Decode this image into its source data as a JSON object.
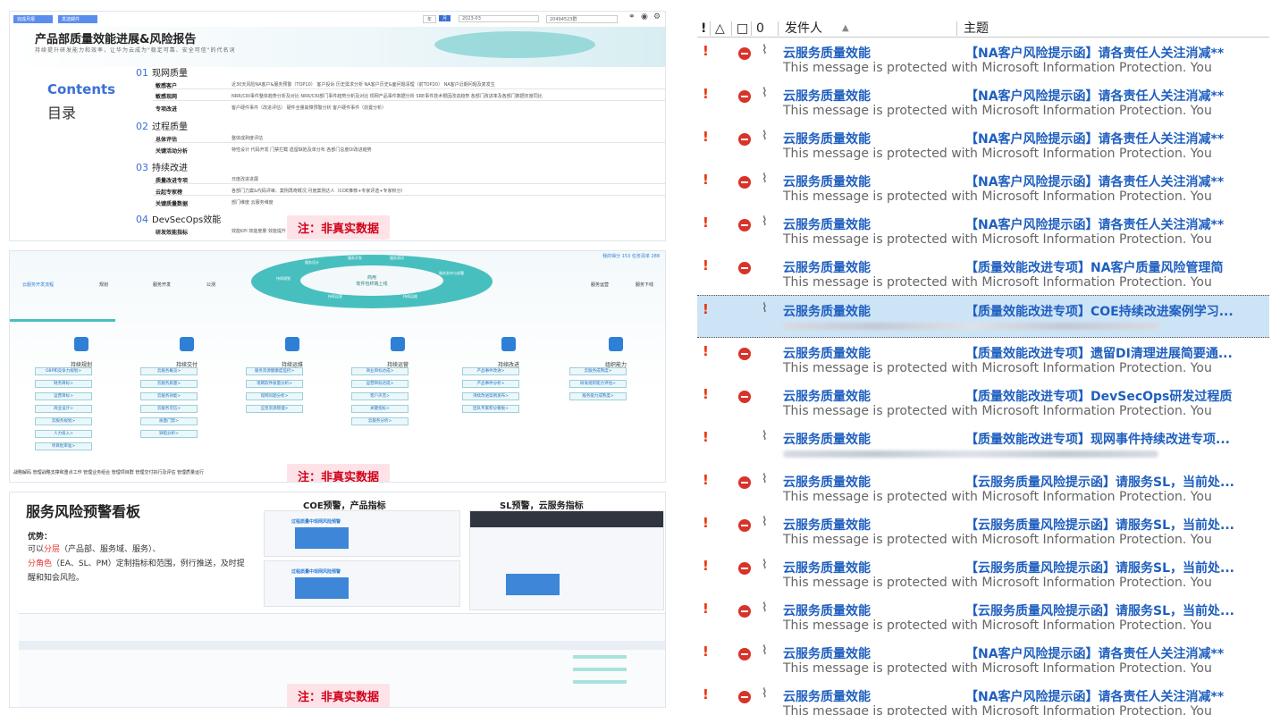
{
  "panel1": {
    "buttons": [
      "完成月报",
      "发送邮件"
    ],
    "top_toggle": [
      "年",
      "月"
    ],
    "date": "2023-03",
    "dept": "20494523群",
    "title": "产品部质量效能进展&风险报告",
    "subtitle": "持续提升研发能力和效率，让华为云成为\"稳定可靠、安全可信\"的代名词",
    "contents_label": "Contents",
    "mulu_label": "目录",
    "sections": [
      {
        "num": "01",
        "name": "现网质量"
      },
      {
        "num": "02",
        "name": "过程质量"
      },
      {
        "num": "03",
        "name": "持续改进"
      },
      {
        "num": "04",
        "name": "DevSecOps效能"
      }
    ],
    "rows": [
      {
        "label": "敏感客户",
        "items": "近30天风险NA客户&服务预警（TOP10）    客户投诉    历史需求分析    NA客户历史&面问题清理（前TOP20）    NA客户近期问题及复发生"
      },
      {
        "label": "敏感现网",
        "items": "NRR/CRI事件整体趋势分析及对比    NRR/CRI部门事件趋势分析及对比    现网产品事件数据分析    SRE事件技术根因改进趋势    各部门改进率及各部门数据年度同比"
      },
      {
        "label": "专项改进",
        "items": "客户硬件事件（改进评估）    硬件全量故障预警分析    客户硬件事件（前置分析）"
      },
      {
        "label": "总体评估",
        "items": "整体成熟度评估"
      },
      {
        "label": "关键活动分析",
        "items": "特性设计    代码开发    门禁拦截    遗留缺陷及单分布    各部门总度DI改进趋势"
      },
      {
        "label": "质量改进专项",
        "items": "日度改进进展"
      },
      {
        "label": "云起专家榜",
        "items": "各部门力案&代码评审、案例再奇概况    月度案例达人（COE推荐+专家评选+专家积分）"
      },
      {
        "label": "关键质量数据",
        "items": "部门维度    云服务维度"
      },
      {
        "label": "研发效能指标",
        "items": "效能KPI    效能度量    效能提升    效能评估    DevOps分析    研发组织能力评估"
      }
    ],
    "note": "注：非真实数据"
  },
  "panel2": {
    "score_text": "我的得分 153    任务清单 288",
    "ring_center": [
      "商用",
      "软件包终端上线"
    ],
    "ring_labels": [
      "服务设计",
      "服务开发",
      "服务测试",
      "服务发布与部署",
      "持续规划",
      "持续运维",
      "持续运营",
      "服务上线"
    ],
    "flow_left": [
      "云服务开发流程",
      "规划",
      "服务开发",
      "公测"
    ],
    "flow_right": [
      "服务运营",
      "服务下线"
    ],
    "columns": [
      {
        "title": "持续规划",
        "items": [
          "OBP和竞争力规划>",
          "财务目标>",
          "运营目标>",
          "商业设计>",
          "云服务规划>",
          "人力投入>",
          "项目批审准>"
        ]
      },
      {
        "title": "持续交付",
        "items": [
          "云服务概览>",
          "云服务质量>",
          "云服务效能>",
          "云服务可信>",
          "质量门禁>",
          "缺陷分析>"
        ]
      },
      {
        "title": "持续运维",
        "items": [
          "服务资源健康度监控>",
          "现网软件质量分析>",
          "现网问题分析>",
          "应急资源管理>"
        ]
      },
      {
        "title": "持续运营",
        "items": [
          "商业目标达成>",
          "运营目标达成>",
          "客户声音>",
          "关键指标>",
          "云服务分析>"
        ]
      },
      {
        "title": "持续改进",
        "items": [
          "产品事件改进>",
          "产品事件分析>",
          "持续改进案例发布>",
          "团队专家积分看板>"
        ]
      },
      {
        "title": "组织能力",
        "items": [
          "云服务成熟度>",
          "研发组织能力评估>",
          "服务能力成熟度>"
        ]
      }
    ],
    "bottom": "战略解码    管理战略支撑和重点工作    管理业务组合    管理项目群    管理交付执行及评估    管理质量运行",
    "note": "注：非真实数据"
  },
  "panel3": {
    "title": "服务风险预警看板",
    "head_coe": "COE预警，产品指标",
    "head_sl": "SL预警，云服务指标",
    "adv_label": "优势：",
    "body_parts": [
      "可以",
      "分层",
      "（产品部、服务域、服务）、",
      "分角色",
      "（EA、SL、PM）定制指标和范围，例行推送，及时提醒和知会风险。"
    ],
    "card_title": "过程质量中现网风险预警",
    "note": "注：非真实数据"
  },
  "mail": {
    "headers": {
      "importance": "!",
      "reminder": "△",
      "type": "□",
      "attach": "0",
      "sender": "发件人",
      "subject": "主题"
    },
    "rows": [
      {
        "sender": "云服务质量效能",
        "subject": "【NA客户风险提示函】请各责任人关注消减**",
        "preview": "This message is protected with Microsoft Information Protection. You",
        "imp": true,
        "stop": true,
        "clip": true,
        "sel": false,
        "blur": false
      },
      {
        "sender": "云服务质量效能",
        "subject": "【NA客户风险提示函】请各责任人关注消减**",
        "preview": "This message is protected with Microsoft Information Protection. You",
        "imp": true,
        "stop": true,
        "clip": true,
        "sel": false,
        "blur": false
      },
      {
        "sender": "云服务质量效能",
        "subject": "【NA客户风险提示函】请各责任人关注消减**",
        "preview": "This message is protected with Microsoft Information Protection. You",
        "imp": true,
        "stop": true,
        "clip": true,
        "sel": false,
        "blur": false
      },
      {
        "sender": "云服务质量效能",
        "subject": "【NA客户风险提示函】请各责任人关注消减**",
        "preview": "This message is protected with Microsoft Information Protection. You",
        "imp": true,
        "stop": true,
        "clip": true,
        "sel": false,
        "blur": false
      },
      {
        "sender": "云服务质量效能",
        "subject": "【NA客户风险提示函】请各责任人关注消减**",
        "preview": "This message is protected with Microsoft Information Protection. You",
        "imp": true,
        "stop": true,
        "clip": true,
        "sel": false,
        "blur": false
      },
      {
        "sender": "云服务质量效能",
        "subject": "【质量效能改进专项】NA客户质量风险管理简",
        "preview": "This message is protected with Microsoft Information Protection. You",
        "imp": true,
        "stop": true,
        "clip": false,
        "sel": false,
        "blur": false
      },
      {
        "sender": "云服务质量效能",
        "subject": "【质量效能改进专项】COE持续改进案例学习...",
        "preview": "",
        "imp": true,
        "stop": false,
        "clip": true,
        "sel": true,
        "blur": true
      },
      {
        "sender": "云服务质量效能",
        "subject": "【质量效能改进专项】遗留DI清理进展简要通...",
        "preview": "This message is protected with Microsoft Information Protection. You",
        "imp": true,
        "stop": true,
        "clip": false,
        "sel": false,
        "blur": false
      },
      {
        "sender": "云服务质量效能",
        "subject": "【质量效能改进专项】DevSecOps研发过程质",
        "preview": "This message is protected with Microsoft Information Protection. You",
        "imp": true,
        "stop": true,
        "clip": false,
        "sel": false,
        "blur": false
      },
      {
        "sender": "云服务质量效能",
        "subject": "【质量效能改进专项】现网事件持续改进专项...",
        "preview": "",
        "imp": true,
        "stop": false,
        "clip": true,
        "sel": false,
        "blur": true
      },
      {
        "sender": "云服务质量效能",
        "subject": "【云服务质量风险提示函】请服务SL，当前处...",
        "preview": "This message is protected with Microsoft Information Protection. You",
        "imp": true,
        "stop": true,
        "clip": true,
        "sel": false,
        "blur": false
      },
      {
        "sender": "云服务质量效能",
        "subject": "【云服务质量风险提示函】请服务SL，当前处...",
        "preview": "This message is protected with Microsoft Information Protection. You",
        "imp": true,
        "stop": true,
        "clip": true,
        "sel": false,
        "blur": false
      },
      {
        "sender": "云服务质量效能",
        "subject": "【云服务质量风险提示函】请服务SL，当前处...",
        "preview": "This message is protected with Microsoft Information Protection. You",
        "imp": true,
        "stop": true,
        "clip": true,
        "sel": false,
        "blur": false
      },
      {
        "sender": "云服务质量效能",
        "subject": "【云服务质量风险提示函】请服务SL，当前处...",
        "preview": "This message is protected with Microsoft Information Protection. You",
        "imp": true,
        "stop": true,
        "clip": true,
        "sel": false,
        "blur": false
      },
      {
        "sender": "云服务质量效能",
        "subject": "【NA客户风险提示函】请各责任人关注消减**",
        "preview": "This message is protected with Microsoft Information Protection. You",
        "imp": true,
        "stop": true,
        "clip": true,
        "sel": false,
        "blur": false
      },
      {
        "sender": "云服务质量效能",
        "subject": "【NA客户风险提示函】请各责任人关注消减**",
        "preview": "This message is protected with Microsoft Information Protection. You",
        "imp": true,
        "stop": true,
        "clip": true,
        "sel": false,
        "blur": false
      }
    ]
  },
  "colors": {
    "accent": "#3b6fd6",
    "sender_blue": "#1f5fbf",
    "importance_red": "#e8320c",
    "teal": "#48bfbf",
    "note_red": "#d0021b"
  }
}
